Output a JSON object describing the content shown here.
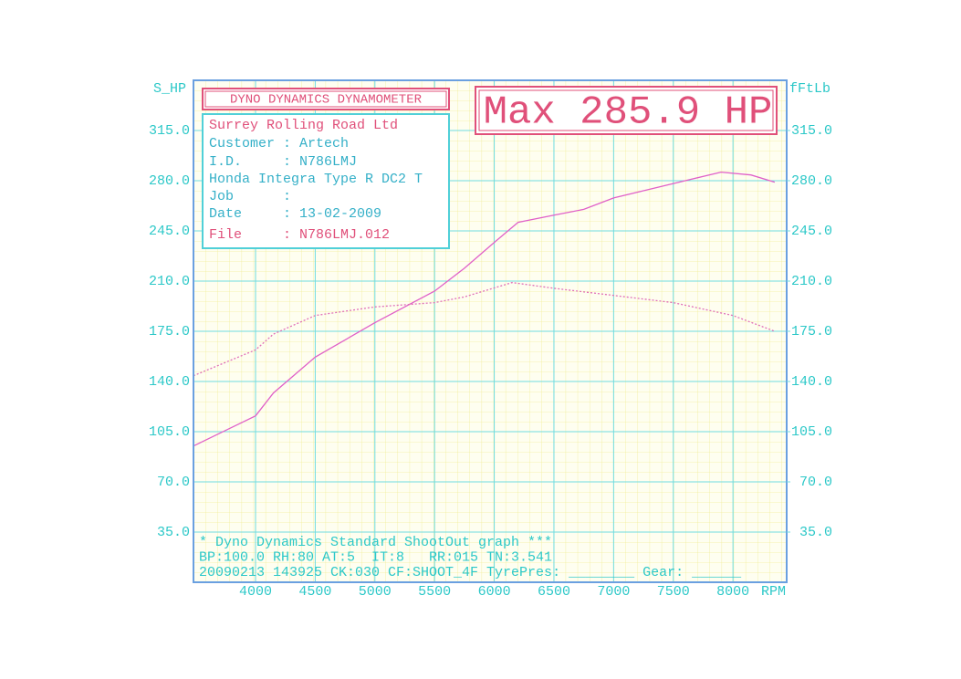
{
  "chart_data": {
    "type": "line",
    "header": "DYNO DYNAMICS DYNAMOMETER",
    "max_label": "Max 285.9 HP",
    "info_lines": [
      "Surrey Rolling Road Ltd",
      "Customer : Artech",
      "I.D.     : N786LMJ",
      "Honda Integra Type R DC2 T",
      "Job      :",
      "Date     : 13-02-2009",
      "File     : N786LMJ.012"
    ],
    "footer_lines": [
      "* Dyno Dynamics Standard ShootOut graph ***",
      "BP:100.0 RH:80 AT:5  IT:8   RR:015 TN:3.541",
      "20090213 143925 CK:030 CF:SHOOT_4F TyrePres: ________ Gear: ______"
    ],
    "y_label": "S_HP",
    "y2_label": "fFtLb",
    "x_label": "RPM",
    "xlim": [
      3480,
      8450
    ],
    "xticks": [
      4000,
      4500,
      5000,
      5500,
      6000,
      6500,
      7000,
      7500,
      8000
    ],
    "ylim": [
      0,
      350
    ],
    "yticks": [
      {
        "value": 35,
        "label": "35.0"
      },
      {
        "value": 70,
        "label": "70.0"
      },
      {
        "value": 105,
        "label": "105.0"
      },
      {
        "value": 140,
        "label": "140.0"
      },
      {
        "value": 175,
        "label": "175.0"
      },
      {
        "value": 210,
        "label": "210.0"
      },
      {
        "value": 245,
        "label": "245.0"
      },
      {
        "value": 280,
        "label": "280.0"
      },
      {
        "value": 315,
        "label": "315.0"
      }
    ],
    "y2lim": [
      0,
      350
    ],
    "y2ticks": [
      {
        "value": 35,
        "label": "35.0"
      },
      {
        "value": 70,
        "label": "70.0"
      },
      {
        "value": 105,
        "label": "105.0"
      },
      {
        "value": 140,
        "label": "140.0"
      },
      {
        "value": 175,
        "label": "175.0"
      },
      {
        "value": 210,
        "label": "210.0"
      },
      {
        "value": 245,
        "label": "245.0"
      },
      {
        "value": 280,
        "label": "280.0"
      },
      {
        "value": 315,
        "label": "315.0"
      }
    ],
    "grid": true,
    "series": [
      {
        "color": "#e060c8",
        "dash": false,
        "x": [
          3480,
          4000,
          4150,
          4500,
          5000,
          5500,
          5750,
          6000,
          6200,
          6500,
          6750,
          7000,
          7500,
          7900,
          8150,
          8350
        ],
        "values": [
          95,
          116,
          132,
          157,
          181,
          203,
          219,
          237,
          251,
          256,
          260,
          268,
          278,
          286,
          284,
          279
        ]
      },
      {
        "color": "#e070b8",
        "dash": true,
        "axis": "y2",
        "x": [
          3480,
          4000,
          4150,
          4500,
          5000,
          5500,
          5750,
          6150,
          6500,
          7000,
          7500,
          8000,
          8350
        ],
        "values": [
          144,
          162,
          173,
          186,
          192,
          195,
          199,
          209,
          205,
          200,
          195,
          186,
          175
        ]
      }
    ]
  }
}
